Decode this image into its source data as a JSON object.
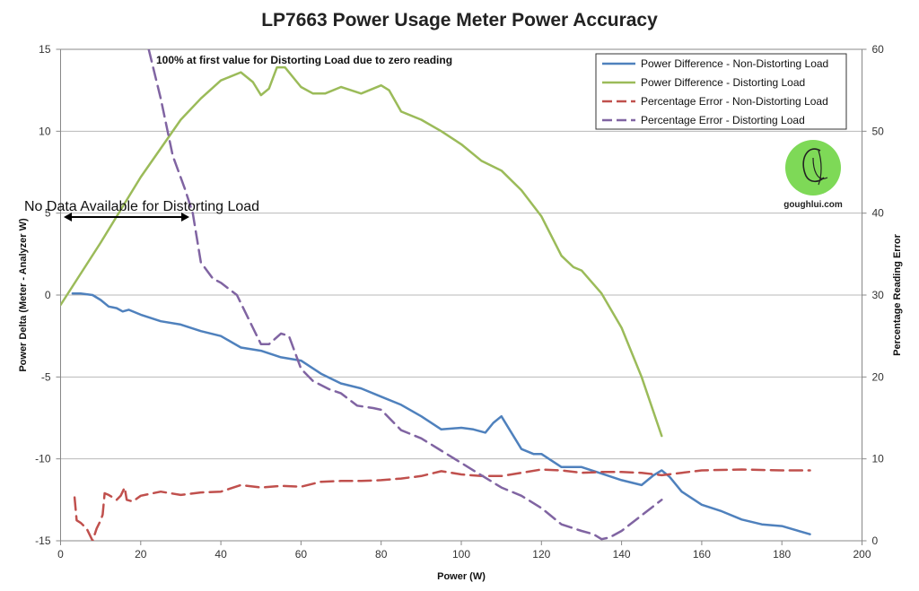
{
  "chart_data": {
    "type": "line",
    "title": "LP7663 Power Usage Meter Power Accuracy",
    "xlabel": "Power (W)",
    "ylabel": "Power Delta (Meter - Analyzer W)",
    "y2label": "Percentage Reading Error",
    "xlim": [
      0,
      200
    ],
    "ylim": [
      -15,
      15
    ],
    "y2lim": [
      0,
      60
    ],
    "x_ticks": [
      "0",
      "20",
      "40",
      "60",
      "80",
      "100",
      "120",
      "140",
      "160",
      "180",
      "200"
    ],
    "y_ticks": [
      "-15",
      "-10",
      "-5",
      "0",
      "5",
      "10",
      "15"
    ],
    "y2_ticks": [
      "0",
      "10",
      "20",
      "30",
      "40",
      "50",
      "60"
    ],
    "grid": "horizontal",
    "legend_position": "top-right",
    "series": [
      {
        "name": "Power Difference  - Non-Distorting Load",
        "axis": "left",
        "color": "#4f81bd",
        "dash": "solid",
        "points": [
          [
            3,
            0.1
          ],
          [
            5,
            0.1
          ],
          [
            8,
            0
          ],
          [
            10,
            -0.3
          ],
          [
            12,
            -0.7
          ],
          [
            14,
            -0.8
          ],
          [
            15.5,
            -1
          ],
          [
            17,
            -0.9
          ],
          [
            20,
            -1.2
          ],
          [
            25,
            -1.6
          ],
          [
            30,
            -1.8
          ],
          [
            35,
            -2.2
          ],
          [
            40,
            -2.5
          ],
          [
            45,
            -3.2
          ],
          [
            50,
            -3.4
          ],
          [
            55,
            -3.8
          ],
          [
            60,
            -4.0
          ],
          [
            65,
            -4.8
          ],
          [
            70,
            -5.4
          ],
          [
            75,
            -5.7
          ],
          [
            80,
            -6.2
          ],
          [
            85,
            -6.7
          ],
          [
            90,
            -7.4
          ],
          [
            95,
            -8.2
          ],
          [
            100,
            -8.1
          ],
          [
            103,
            -8.2
          ],
          [
            106,
            -8.4
          ],
          [
            108,
            -7.8
          ],
          [
            110,
            -7.4
          ],
          [
            112,
            -8.2
          ],
          [
            115,
            -9.4
          ],
          [
            118,
            -9.7
          ],
          [
            120,
            -9.7
          ],
          [
            125,
            -10.5
          ],
          [
            130,
            -10.5
          ],
          [
            135,
            -10.9
          ],
          [
            140,
            -11.3
          ],
          [
            145,
            -11.6
          ],
          [
            148,
            -11
          ],
          [
            150,
            -10.7
          ],
          [
            152,
            -11.1
          ],
          [
            155,
            -12
          ],
          [
            160,
            -12.8
          ],
          [
            165,
            -13.2
          ],
          [
            170,
            -13.7
          ],
          [
            175,
            -14.0
          ],
          [
            180,
            -14.1
          ],
          [
            187,
            -14.6
          ]
        ]
      },
      {
        "name": "Power Difference  - Distorting Load",
        "axis": "left",
        "color": "#9bbb59",
        "dash": "solid",
        "points": [
          [
            0,
            -0.6
          ],
          [
            10,
            3.2
          ],
          [
            20,
            7.2
          ],
          [
            30,
            10.7
          ],
          [
            35,
            12.0
          ],
          [
            40,
            13.1
          ],
          [
            45,
            13.6
          ],
          [
            48,
            13.0
          ],
          [
            50,
            12.2
          ],
          [
            52,
            12.6
          ],
          [
            54,
            13.9
          ],
          [
            56,
            13.9
          ],
          [
            60,
            12.7
          ],
          [
            63,
            12.3
          ],
          [
            66,
            12.3
          ],
          [
            70,
            12.7
          ],
          [
            75,
            12.3
          ],
          [
            80,
            12.8
          ],
          [
            82,
            12.5
          ],
          [
            85,
            11.2
          ],
          [
            90,
            10.7
          ],
          [
            95,
            10.0
          ],
          [
            100,
            9.2
          ],
          [
            105,
            8.2
          ],
          [
            110,
            7.6
          ],
          [
            115,
            6.4
          ],
          [
            120,
            4.8
          ],
          [
            125,
            2.4
          ],
          [
            128,
            1.7
          ],
          [
            130,
            1.5
          ],
          [
            135,
            0.1
          ],
          [
            140,
            -2
          ],
          [
            145,
            -5
          ],
          [
            150,
            -8.6
          ]
        ]
      },
      {
        "name": "Percentage Error - Non-Distorting Load",
        "axis": "right",
        "color": "#c0504d",
        "dash": "long",
        "points": [
          [
            3.5,
            5.3
          ],
          [
            4,
            2.5
          ],
          [
            5,
            2.2
          ],
          [
            6.5,
            1.5
          ],
          [
            7,
            1.0
          ],
          [
            8,
            0
          ],
          [
            9,
            1.5
          ],
          [
            10,
            2.5
          ],
          [
            10.5,
            3.2
          ],
          [
            11,
            5.8
          ],
          [
            12,
            5.6
          ],
          [
            13,
            5.3
          ],
          [
            14,
            5.0
          ],
          [
            15,
            5.5
          ],
          [
            16,
            6.5
          ],
          [
            16.5,
            5.0
          ],
          [
            18,
            4.8
          ],
          [
            20,
            5.5
          ],
          [
            25,
            6.0
          ],
          [
            30,
            5.6
          ],
          [
            35,
            5.9
          ],
          [
            40,
            6.0
          ],
          [
            45,
            6.8
          ],
          [
            50,
            6.5
          ],
          [
            55,
            6.7
          ],
          [
            60,
            6.6
          ],
          [
            65,
            7.2
          ],
          [
            70,
            7.3
          ],
          [
            75,
            7.3
          ],
          [
            80,
            7.4
          ],
          [
            85,
            7.6
          ],
          [
            90,
            7.9
          ],
          [
            95,
            8.5
          ],
          [
            100,
            8.1
          ],
          [
            105,
            7.9
          ],
          [
            110,
            7.9
          ],
          [
            115,
            8.3
          ],
          [
            120,
            8.7
          ],
          [
            125,
            8.6
          ],
          [
            130,
            8.3
          ],
          [
            135,
            8.4
          ],
          [
            140,
            8.4
          ],
          [
            145,
            8.3
          ],
          [
            150,
            8.0
          ],
          [
            155,
            8.3
          ],
          [
            160,
            8.6
          ],
          [
            170,
            8.7
          ],
          [
            180,
            8.6
          ],
          [
            187,
            8.6
          ]
        ]
      },
      {
        "name": "Percentage Error - Distorting Load",
        "axis": "right",
        "color": "#8064a2",
        "dash": "long",
        "points": [
          [
            22,
            60
          ],
          [
            25,
            54
          ],
          [
            28,
            47
          ],
          [
            31,
            43
          ],
          [
            33,
            40
          ],
          [
            35,
            34
          ],
          [
            38,
            32
          ],
          [
            40,
            31.5
          ],
          [
            44,
            30
          ],
          [
            48,
            26
          ],
          [
            50,
            24
          ],
          [
            52,
            24
          ],
          [
            55,
            25.3
          ],
          [
            57,
            25
          ],
          [
            60,
            21
          ],
          [
            63,
            19.5
          ],
          [
            67,
            18.5
          ],
          [
            70,
            18
          ],
          [
            74,
            16.5
          ],
          [
            78,
            16.2
          ],
          [
            80,
            16
          ],
          [
            85,
            13.5
          ],
          [
            90,
            12.5
          ],
          [
            95,
            11
          ],
          [
            100,
            9.5
          ],
          [
            105,
            8
          ],
          [
            110,
            6.5
          ],
          [
            115,
            5.5
          ],
          [
            120,
            4
          ],
          [
            125,
            2
          ],
          [
            130,
            1.2
          ],
          [
            133,
            0.8
          ],
          [
            135,
            0.2
          ],
          [
            137,
            0.4
          ],
          [
            140,
            1.2
          ],
          [
            145,
            3.1
          ],
          [
            150,
            5.0
          ]
        ]
      }
    ],
    "annotations": [
      {
        "text": "100% at first value for Distorting Load  due to zero reading"
      },
      {
        "text": "No Data Available for Distorting Load"
      }
    ]
  },
  "watermark": {
    "site": "goughlui.com",
    "logo_fill": "#7ed957"
  }
}
